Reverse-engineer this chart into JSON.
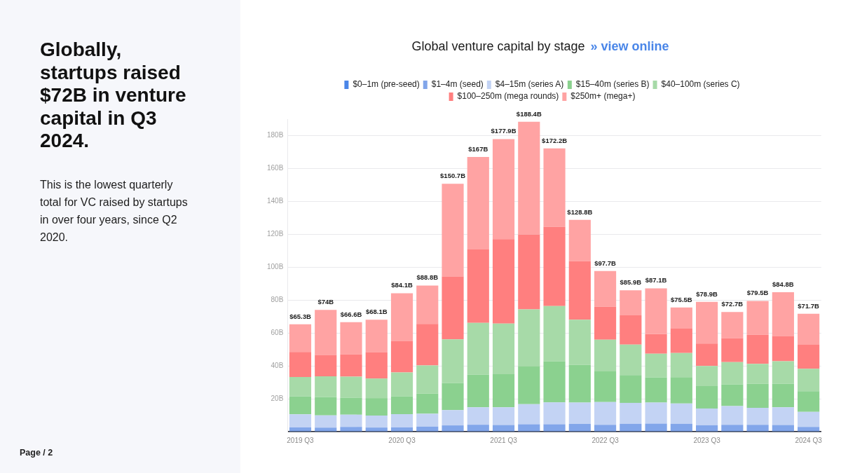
{
  "chart_data": {
    "type": "bar",
    "title": "Globally, startups raised $72B in venture capital in Q3 2024.",
    "subtitle": "This is the lowest quarterly total for VC raised by startups in over four years, since Q2 2020.",
    "annotations": [
      "Global venture capital by stage",
      "» view online",
      "Page / 2"
    ],
    "categories": [
      "2019 Q3",
      null,
      null,
      null,
      "2020 Q3",
      null,
      null,
      null,
      "2021 Q3",
      null,
      null,
      null,
      "2022 Q3",
      null,
      null,
      null,
      "2023 Q3",
      null,
      null,
      null,
      "2024 Q3"
    ],
    "stacked": true,
    "legend": "top",
    "grid": "y",
    "ylim": [
      0,
      190
    ],
    "yticks": [
      {
        "value": 0,
        "label": null
      },
      {
        "value": 20,
        "label": "20B"
      },
      {
        "value": 40,
        "label": "40B"
      },
      {
        "value": 60,
        "label": "60B"
      },
      {
        "value": 80,
        "label": "80B"
      },
      {
        "value": 100,
        "label": "100B"
      },
      {
        "value": 120,
        "label": "120B"
      },
      {
        "value": 140,
        "label": "140B"
      },
      {
        "value": 160,
        "label": "160B"
      },
      {
        "value": 180,
        "label": "180B"
      }
    ],
    "series": [
      {
        "name": "$0–1m (pre-seed)",
        "color": "#4a86e8",
        "values": [
          0.3,
          0.3,
          0.3,
          0.3,
          0.3,
          0.3,
          0.3,
          0.3,
          0.3,
          0.3,
          0.3,
          0.3,
          0.3,
          0.3,
          0.3,
          0.3,
          0.3,
          0.3,
          0.3,
          0.3,
          0.3
        ]
      },
      {
        "name": "$1–4m (seed)",
        "color": "#82a6ea",
        "values": [
          2.3,
          2.2,
          2.6,
          2.2,
          2.3,
          2.8,
          3.5,
          3.9,
          3.8,
          4.2,
          4.2,
          4.4,
          3.9,
          4.5,
          4.6,
          4.5,
          3.6,
          3.9,
          3.9,
          3.8,
          2.6
        ]
      },
      {
        "name": "$4–15m (series A)",
        "color": "#c3d3f4",
        "values": [
          7.9,
          7.4,
          7.4,
          7.3,
          8.1,
          7.8,
          9.3,
          10.6,
          10.7,
          12.2,
          13.3,
          13.0,
          13.8,
          12.7,
          12.8,
          12.3,
          10.2,
          11.3,
          10.3,
          10.7,
          9.1
        ]
      },
      {
        "name": "$15–40m (series B)",
        "color": "#8bd18f",
        "values": [
          10.9,
          11.1,
          10.4,
          10.6,
          10.8,
          12.2,
          16.5,
          19.8,
          20.1,
          22.9,
          25.0,
          22.9,
          18.6,
          16.9,
          15.3,
          16.0,
          13.6,
          13.3,
          14.6,
          14.3,
          12.6
        ]
      },
      {
        "name": "$40–100m (series C)",
        "color": "#a7daa8",
        "values": [
          11.8,
          12.7,
          12.7,
          11.9,
          14.5,
          17.2,
          26.5,
          31.5,
          30.8,
          34.7,
          33.6,
          27.5,
          19.3,
          18.5,
          14.4,
          14.7,
          12.2,
          13.5,
          12.1,
          13.7,
          13.6
        ]
      },
      {
        "name": "$100–250m (mega rounds)",
        "color": "#ff7f7f",
        "values": [
          15.3,
          12.9,
          13.6,
          16.0,
          19.2,
          25.2,
          38.3,
          44.7,
          51.3,
          45.5,
          48.1,
          35.5,
          20.0,
          17.8,
          12.0,
          15.0,
          13.7,
          14.5,
          17.7,
          15.3,
          14.6
        ]
      },
      {
        "name": "$250m+ (mega+)",
        "color": "#ffa3a3",
        "values": [
          16.8,
          27.4,
          19.6,
          19.8,
          28.9,
          23.3,
          56.3,
          56.2,
          60.9,
          68.6,
          47.7,
          25.2,
          21.8,
          15.2,
          27.7,
          12.7,
          25.3,
          15.9,
          20.6,
          26.7,
          18.9
        ]
      }
    ],
    "totals": [
      "$65.3B",
      "$74B",
      "$66.6B",
      "$68.1B",
      "$84.1B",
      "$88.8B",
      "$150.7B",
      "$167B",
      "$177.9B",
      "$188.4B",
      "$172.2B",
      "$128.8B",
      "$97.7B",
      "$85.9B",
      "$87.1B",
      "$75.5B",
      "$78.9B",
      "$72.7B",
      "$79.5B",
      "$84.8B",
      "$71.7B"
    ]
  }
}
